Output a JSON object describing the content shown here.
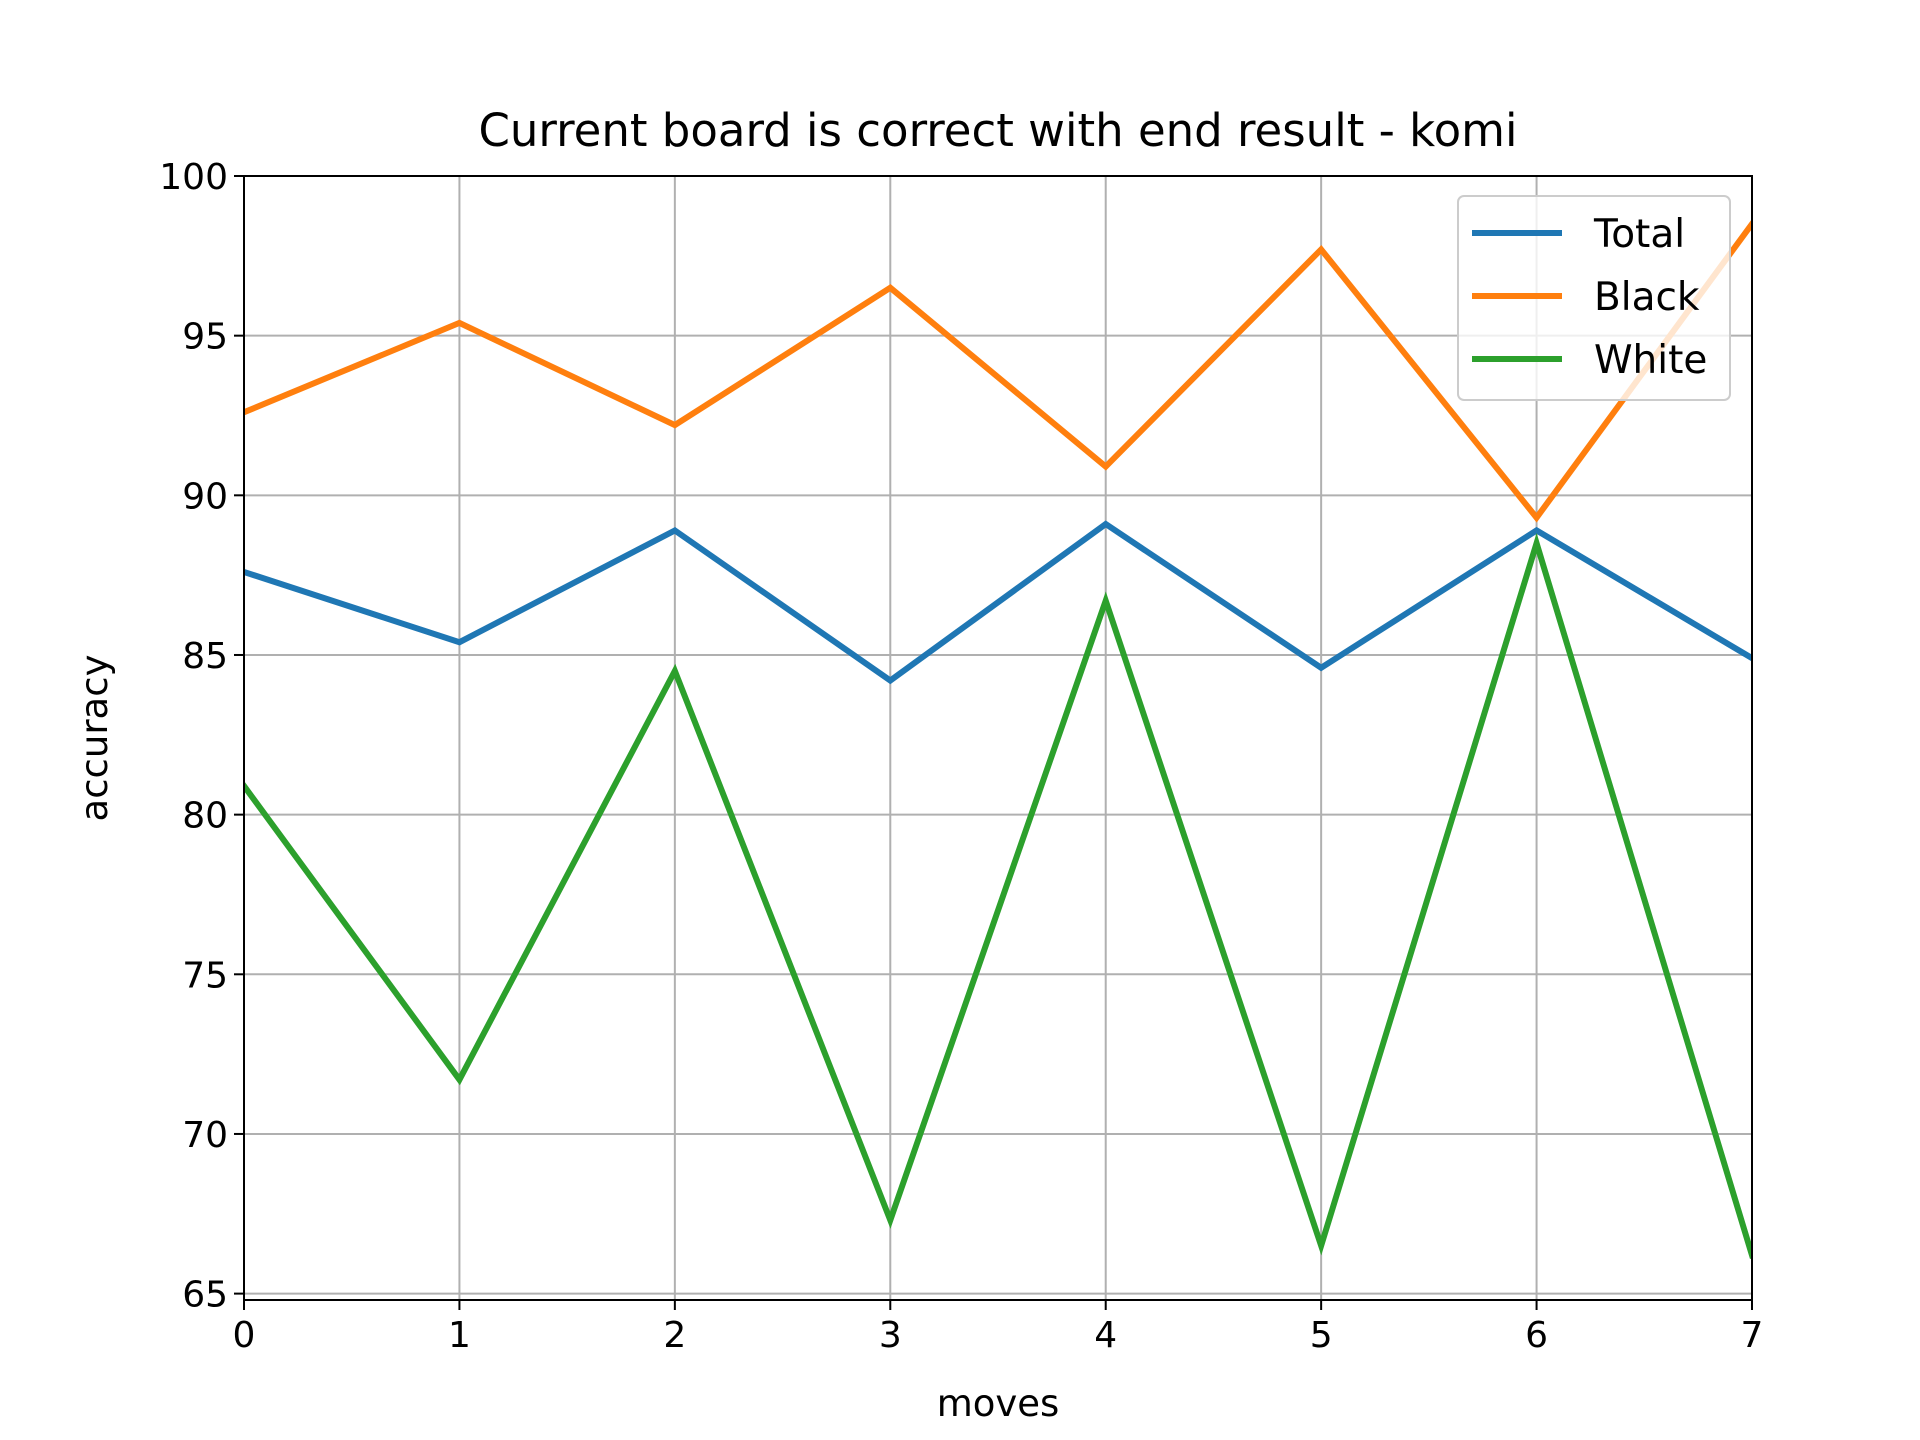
{
  "chart_data": {
    "type": "line",
    "title": "Current board is correct with end result - komi",
    "xlabel": "moves",
    "ylabel": "accuracy",
    "x": [
      0,
      1,
      2,
      3,
      4,
      5,
      6,
      7
    ],
    "xlim": [
      0,
      7
    ],
    "ylim": [
      64.8,
      100
    ],
    "xticks": [
      "0",
      "1",
      "2",
      "3",
      "4",
      "5",
      "6",
      "7"
    ],
    "yticks": [
      "65",
      "70",
      "75",
      "80",
      "85",
      "90",
      "95",
      "100"
    ],
    "grid": true,
    "legend_position": "top-right",
    "series": [
      {
        "name": "Total",
        "color": "#1f77b4",
        "values": [
          87.6,
          85.4,
          88.9,
          84.2,
          89.1,
          84.6,
          88.9,
          84.9
        ]
      },
      {
        "name": "Black",
        "color": "#ff7f0e",
        "values": [
          92.6,
          95.4,
          92.2,
          96.5,
          90.9,
          97.7,
          89.3,
          98.5
        ]
      },
      {
        "name": "White",
        "color": "#2ca02c",
        "values": [
          80.9,
          71.7,
          84.5,
          67.3,
          86.7,
          66.5,
          88.5,
          66.2
        ]
      }
    ]
  }
}
